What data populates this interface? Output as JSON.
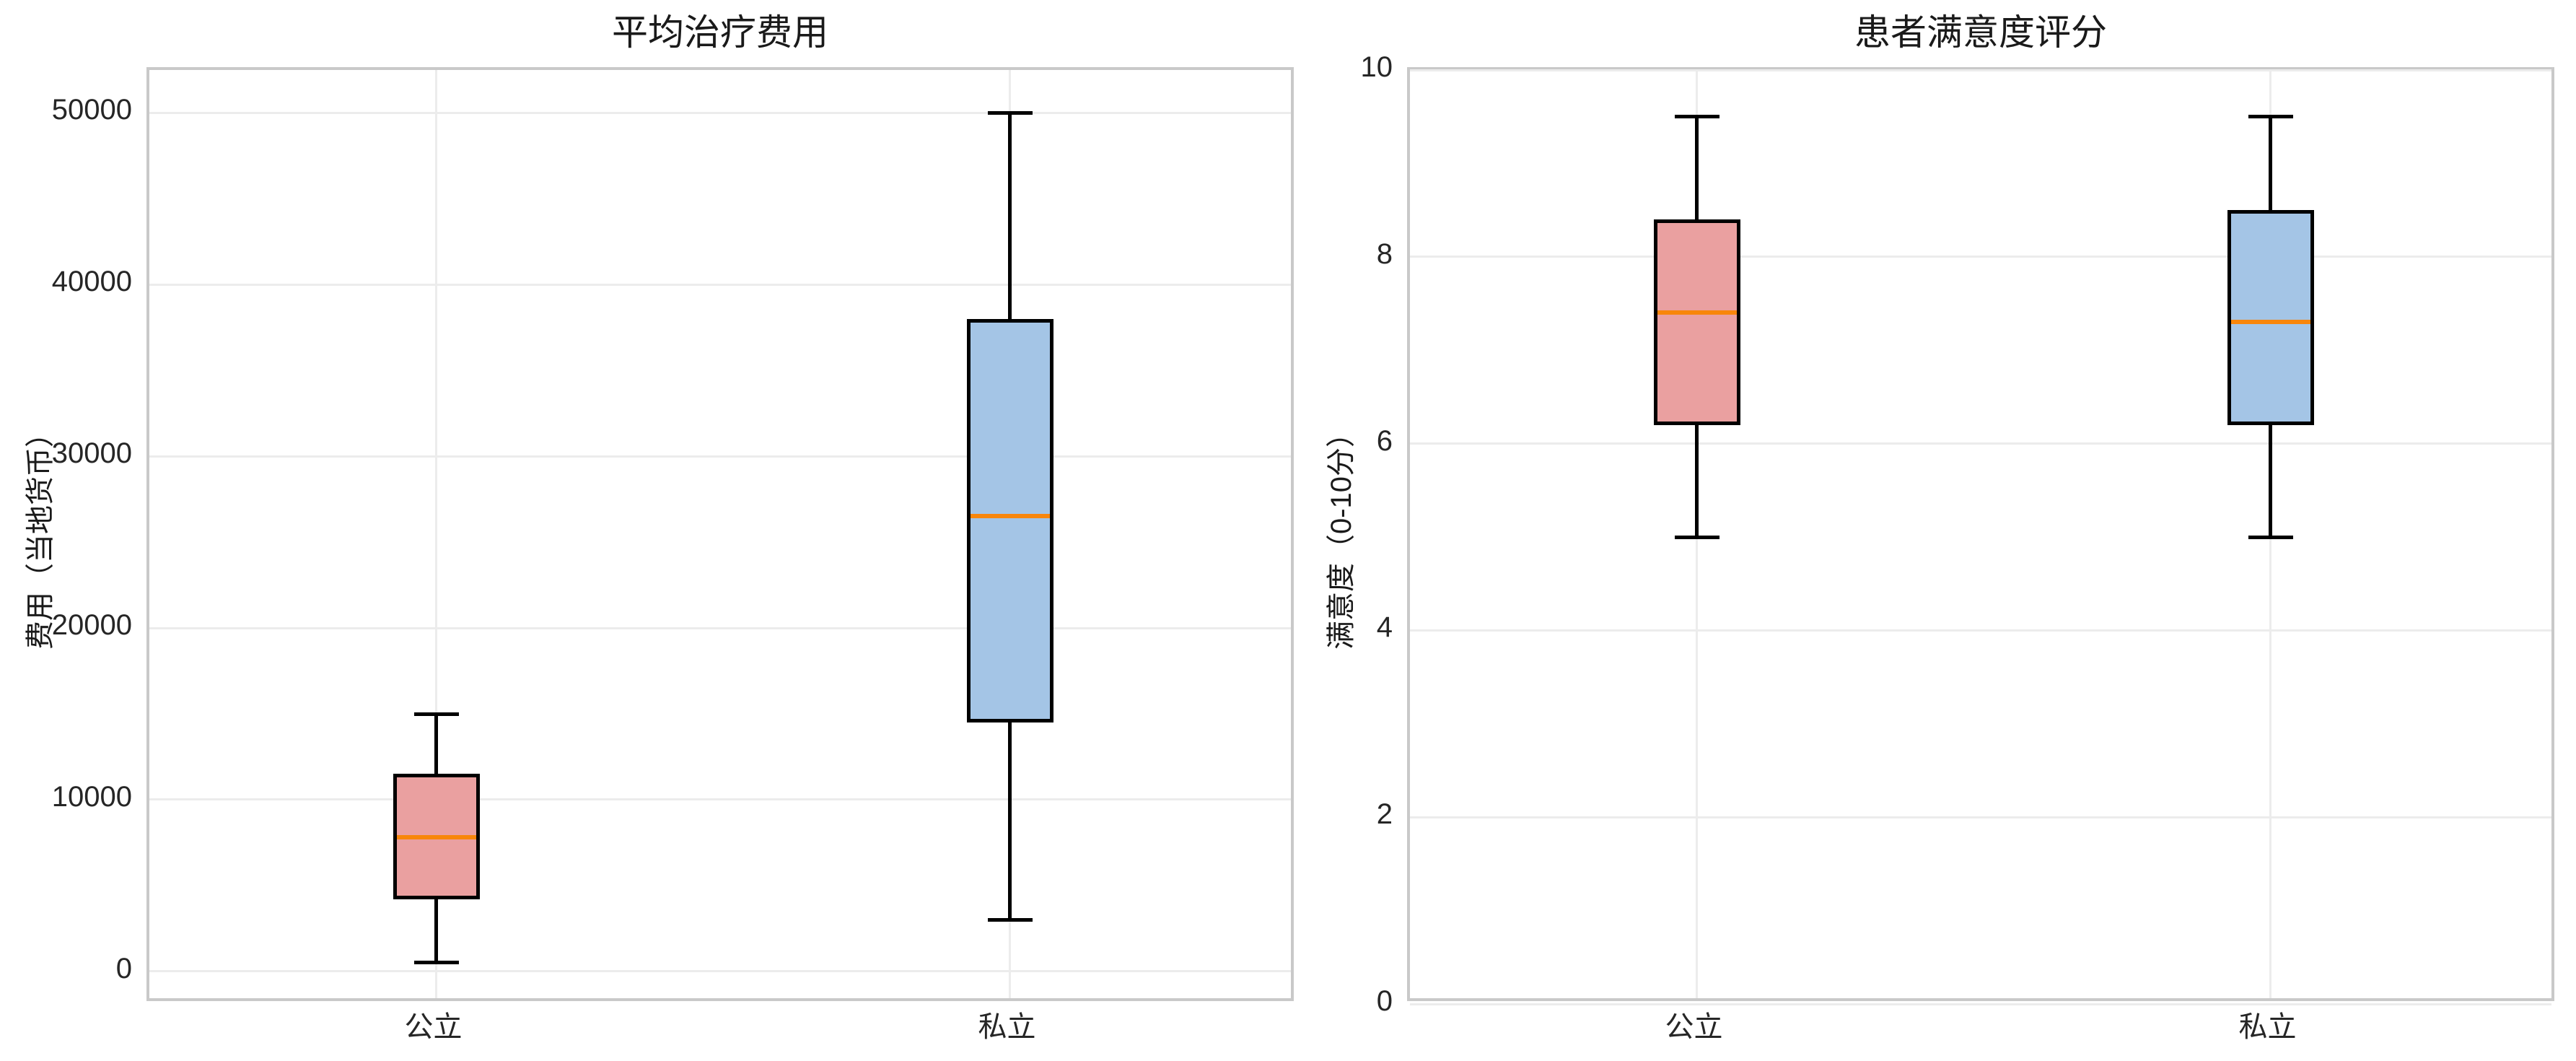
{
  "page": {
    "background": "#ffffff"
  },
  "style": {
    "box_edge_color": "#000000",
    "median_color": "#f8860b",
    "grid_color": "#ececec",
    "spine_color": "#c9c9c9",
    "text_color": "#262626"
  },
  "chart_data": [
    {
      "type": "boxplot",
      "title": "平均治疗费用",
      "ylabel": "费用（当地货币）",
      "xlabel": "",
      "categories": [
        "公立",
        "私立"
      ],
      "yticks": [
        0,
        10000,
        20000,
        30000,
        40000,
        50000
      ],
      "ytick_labels": [
        "0",
        "10000",
        "20000",
        "30000",
        "40000",
        "50000"
      ],
      "ylim": [
        -1900,
        52500
      ],
      "grid": true,
      "legend": "none",
      "series": [
        {
          "name": "公立",
          "min": 500,
          "q1": 4200,
          "median": 7800,
          "q3": 11500,
          "max": 15000,
          "fill_color": "#eaa0a0"
        },
        {
          "name": "私立",
          "min": 3000,
          "q1": 14500,
          "median": 26500,
          "q3": 38000,
          "max": 50000,
          "fill_color": "#a4c5e6"
        }
      ]
    },
    {
      "type": "boxplot",
      "title": "患者满意度评分",
      "ylabel": "满意度（0-10分）",
      "xlabel": "",
      "categories": [
        "公立",
        "私立"
      ],
      "yticks": [
        0,
        2,
        4,
        6,
        8,
        10
      ],
      "ytick_labels": [
        "0",
        "2",
        "4",
        "6",
        "8",
        "10"
      ],
      "ylim": [
        0,
        10
      ],
      "grid": true,
      "legend": "none",
      "series": [
        {
          "name": "公立",
          "min": 5.0,
          "q1": 6.2,
          "median": 7.4,
          "q3": 8.4,
          "max": 9.5,
          "fill_color": "#eaa0a0"
        },
        {
          "name": "私立",
          "min": 5.0,
          "q1": 6.2,
          "median": 7.3,
          "q3": 8.5,
          "max": 9.5,
          "fill_color": "#a4c5e6"
        }
      ]
    }
  ]
}
